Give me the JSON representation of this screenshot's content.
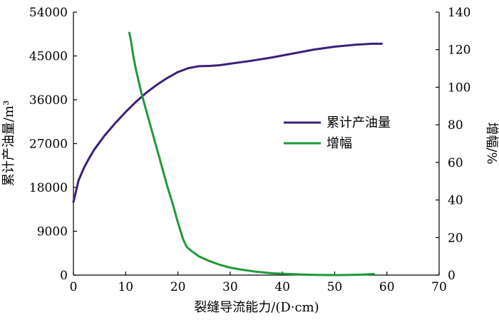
{
  "chart_data": {
    "type": "line",
    "xlabel": "裂缝导流能力/(D·cm)",
    "ylabel_left": "累计产油量/m³",
    "ylabel_right": "增幅/%",
    "xlim": [
      0,
      70
    ],
    "ylim_left": [
      0,
      54000
    ],
    "ylim_right": [
      0,
      140
    ],
    "x_ticks": [
      "0",
      "10",
      "20",
      "30",
      "40",
      "50",
      "60",
      "70"
    ],
    "y_left_ticks": [
      "0",
      "9000",
      "18000",
      "27000",
      "36000",
      "45000",
      "54000"
    ],
    "y_right_ticks": [
      "0",
      "20",
      "40",
      "60",
      "80",
      "100",
      "120",
      "140"
    ],
    "grid": false,
    "legend_position": "center-right",
    "series": [
      {
        "name": "累计产油量",
        "axis": "left",
        "color": "#3d1f7a",
        "points": [
          [
            0,
            15000
          ],
          [
            1,
            19500
          ],
          [
            2,
            22000
          ],
          [
            3,
            24000
          ],
          [
            4,
            25800
          ],
          [
            6,
            28700
          ],
          [
            8,
            31200
          ],
          [
            10,
            33500
          ],
          [
            12,
            35600
          ],
          [
            14,
            37500
          ],
          [
            16,
            39100
          ],
          [
            18,
            40500
          ],
          [
            20,
            41700
          ],
          [
            22,
            42500
          ],
          [
            24,
            42900
          ],
          [
            26,
            42950
          ],
          [
            28,
            43100
          ],
          [
            30,
            43400
          ],
          [
            34,
            44000
          ],
          [
            38,
            44700
          ],
          [
            42,
            45500
          ],
          [
            46,
            46300
          ],
          [
            50,
            46900
          ],
          [
            54,
            47300
          ],
          [
            57,
            47500
          ],
          [
            59,
            47500
          ]
        ]
      },
      {
        "name": "增幅",
        "axis": "right",
        "color": "#1e9a3a",
        "points": [
          [
            10.7,
            129
          ],
          [
            11,
            125
          ],
          [
            11.5,
            116
          ],
          [
            12,
            109
          ],
          [
            13,
            97
          ],
          [
            14,
            87
          ],
          [
            15,
            77
          ],
          [
            16,
            67
          ],
          [
            17,
            57
          ],
          [
            18,
            47
          ],
          [
            19,
            38
          ],
          [
            20,
            28
          ],
          [
            21,
            19
          ],
          [
            21.7,
            15
          ],
          [
            22.5,
            13
          ],
          [
            24,
            10
          ],
          [
            26,
            7.5
          ],
          [
            28,
            5.5
          ],
          [
            30,
            4
          ],
          [
            32,
            3
          ],
          [
            35,
            1.8
          ],
          [
            38,
            1
          ],
          [
            41,
            0.6
          ],
          [
            44,
            0.3
          ],
          [
            47,
            0.1
          ],
          [
            50,
            0
          ],
          [
            53,
            0.1
          ],
          [
            55.5,
            0.3
          ],
          [
            57.5,
            0.6
          ]
        ]
      }
    ]
  }
}
